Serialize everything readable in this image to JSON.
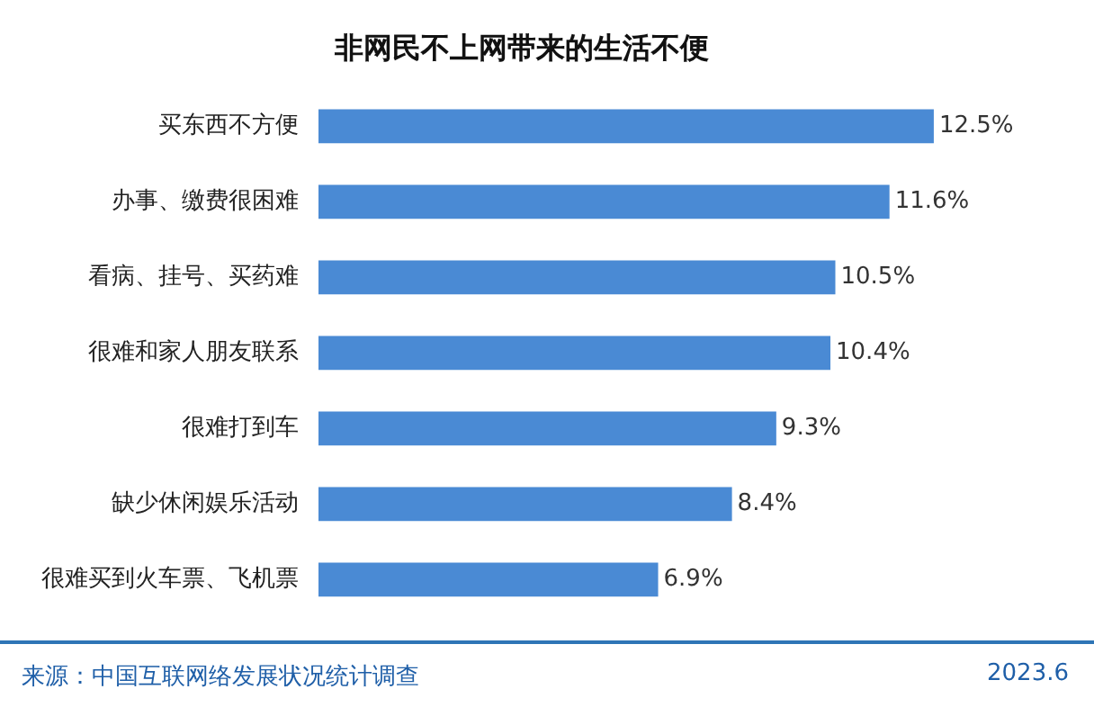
{
  "chart_data": {
    "type": "bar",
    "orientation": "horizontal",
    "title": "非网民不上网带来的生活不便",
    "categories": [
      "买东西不方便",
      "办事、缴费很困难",
      "看病、挂号、买药难",
      "很难和家人朋友联系",
      "很难打到车",
      "缺少休闲娱乐活动",
      "很难买到火车票、飞机票"
    ],
    "values": [
      12.5,
      11.6,
      10.5,
      10.4,
      9.3,
      8.4,
      6.9
    ],
    "value_labels": [
      "12.5%",
      "11.6%",
      "10.5%",
      "10.4%",
      "9.3%",
      "8.4%",
      "6.9%"
    ],
    "color": "#4a8ad4",
    "tick_labels": "y",
    "annotations": [
      "来源：中国互联网络发展状况统计调查",
      "2023.6"
    ]
  }
}
